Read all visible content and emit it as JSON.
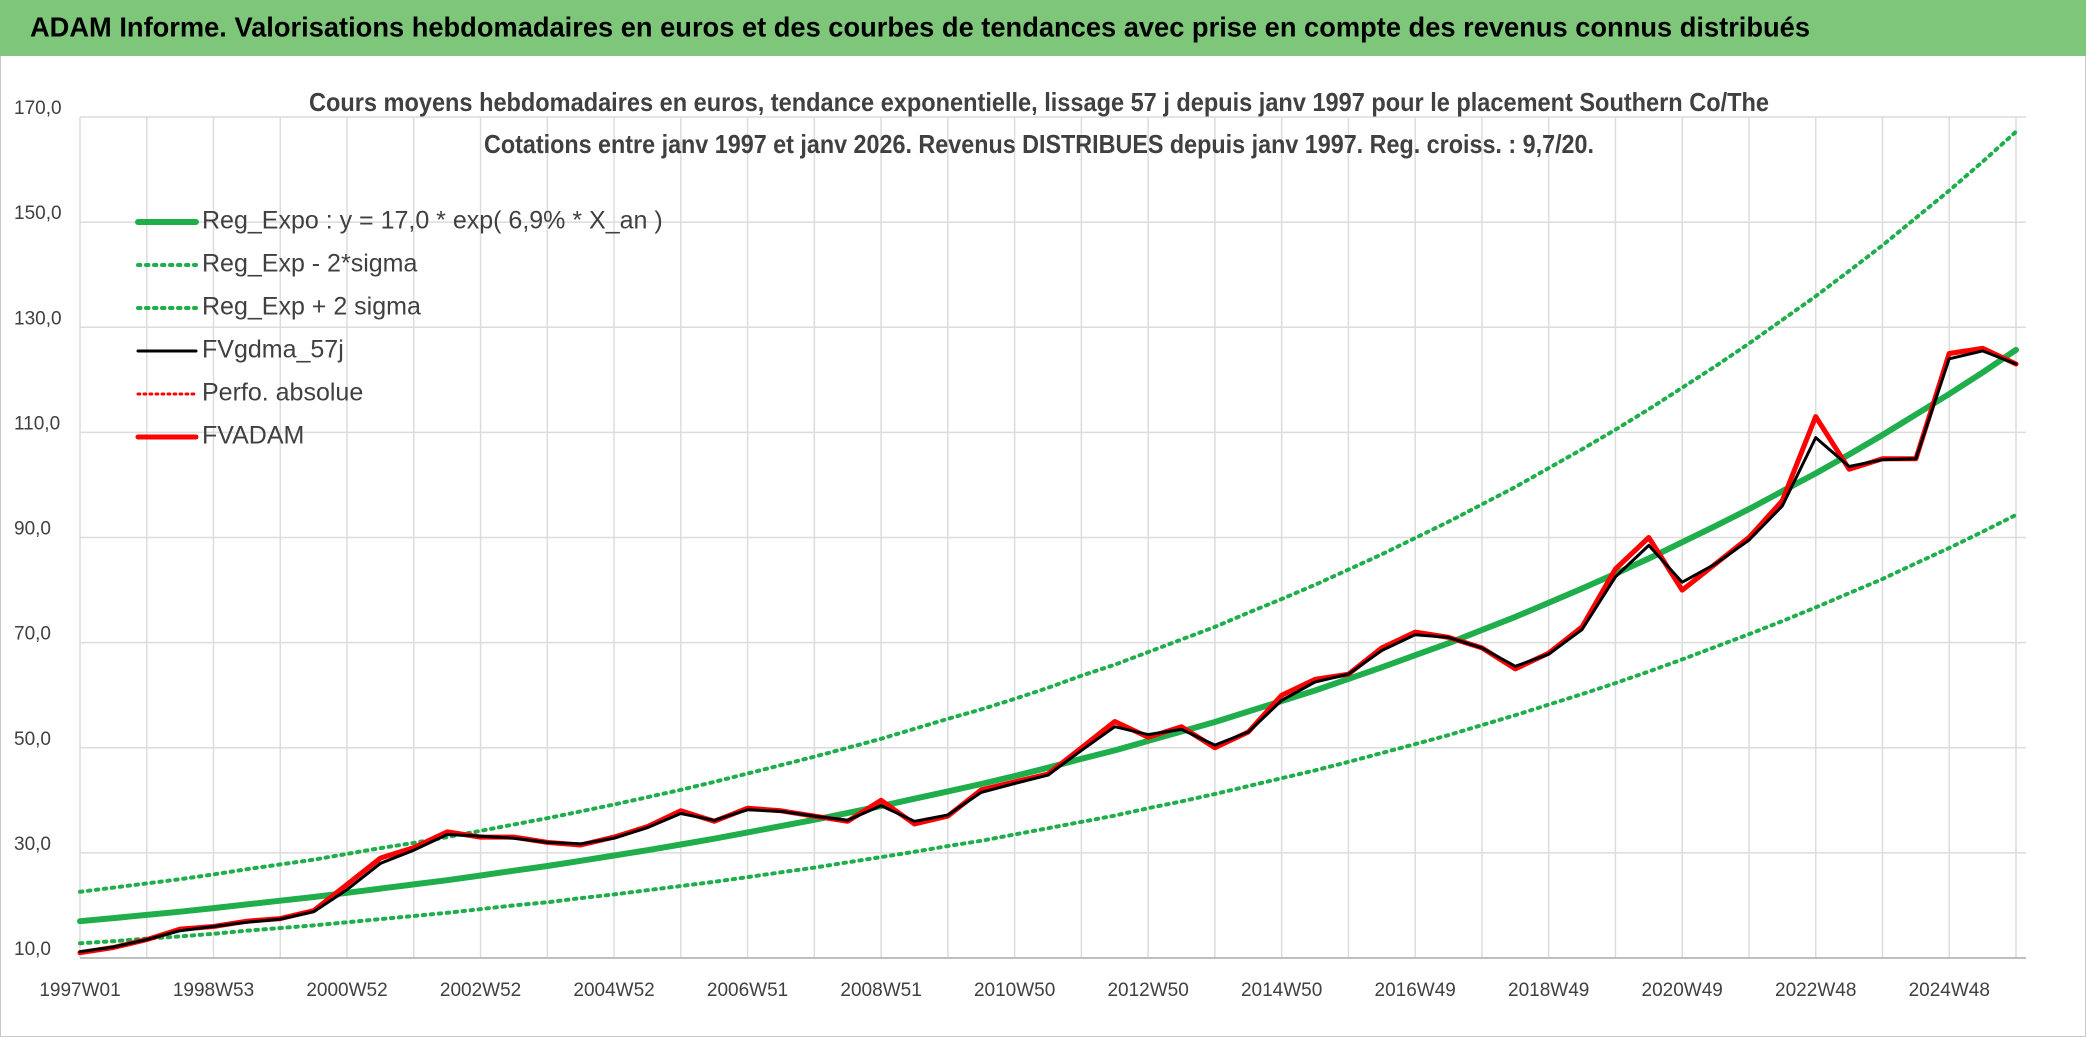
{
  "header": {
    "title": "ADAM Informe. Valorisations hebdomadaires en euros et des courbes de tendances avec prise en compte des revenus connus distribués"
  },
  "chart_data": {
    "type": "line",
    "title": "Cours moyens hebdomadaires en euros, tendance exponentielle, lissage 57 j depuis janv 1997 pour le placement Southern Co/The",
    "subtitle": "Cotations entre janv 1997 et janv 2026. Revenus DISTRIBUES depuis janv 1997. Reg. croiss. : 9,7/20.",
    "categories": [
      "1997W01",
      null,
      null,
      null,
      "1998W53",
      null,
      null,
      null,
      "2000W52",
      null,
      null,
      null,
      "2002W52",
      null,
      null,
      null,
      "2004W52",
      null,
      null,
      null,
      "2006W51",
      null,
      null,
      null,
      "2008W51",
      null,
      null,
      null,
      "2010W50",
      null,
      null,
      null,
      "2012W50",
      null,
      null,
      null,
      "2014W50",
      null,
      null,
      null,
      "2016W49",
      null,
      null,
      null,
      "2018W49",
      null,
      null,
      null,
      "2020W49",
      null,
      null,
      null,
      "2022W48",
      null,
      null,
      null,
      "2024W48",
      null,
      null
    ],
    "ylim": [
      10,
      170
    ],
    "yticks": [
      {
        "value": 10,
        "label": "10,0"
      },
      {
        "value": 30,
        "label": "30,0"
      },
      {
        "value": 50,
        "label": "50,0"
      },
      {
        "value": 70,
        "label": "70,0"
      },
      {
        "value": 90,
        "label": "90,0"
      },
      {
        "value": 110,
        "label": "110,0"
      },
      {
        "value": 130,
        "label": "130,0"
      },
      {
        "value": 150,
        "label": "150,0"
      },
      {
        "value": 170,
        "label": "170,0"
      }
    ],
    "grid": true,
    "legend": "top-left",
    "series": [
      {
        "name": "Reg_Expo : y = 17,0 * exp( 6,9% *  X_an )",
        "color": "#1fae4b",
        "dash": "solid",
        "width": 6,
        "values": [
          17.0,
          17.6,
          18.2,
          18.8,
          19.5,
          20.2,
          20.9,
          21.6,
          22.4,
          23.2,
          24.0,
          24.8,
          25.7,
          26.6,
          27.5,
          28.5,
          29.5,
          30.5,
          31.6,
          32.7,
          33.9,
          35.1,
          36.3,
          37.6,
          38.9,
          40.3,
          41.7,
          43.1,
          44.6,
          46.2,
          47.9,
          49.5,
          51.3,
          53.1,
          54.9,
          56.9,
          58.9,
          60.9,
          63.1,
          65.3,
          67.6,
          69.9,
          72.4,
          74.9,
          77.6,
          80.3,
          83.1,
          86.0,
          89.1,
          92.2,
          95.4,
          98.8,
          102.2,
          105.8,
          109.5,
          113.4,
          117.3,
          121.4,
          125.7
        ]
      },
      {
        "name": "Reg_Exp - 2*sigma",
        "color": "#1fae4b",
        "dash": "dotted",
        "width": 4,
        "values": [
          12.8,
          13.2,
          13.7,
          14.1,
          14.6,
          15.2,
          15.7,
          16.2,
          16.8,
          17.4,
          18.0,
          18.6,
          19.3,
          20.0,
          20.6,
          21.4,
          22.1,
          22.9,
          23.7,
          24.5,
          25.4,
          26.3,
          27.2,
          28.2,
          29.2,
          30.2,
          31.3,
          32.3,
          33.5,
          34.7,
          35.9,
          37.1,
          38.5,
          39.8,
          41.2,
          42.7,
          44.2,
          45.7,
          47.3,
          49.0,
          50.7,
          52.4,
          54.3,
          56.2,
          58.2,
          60.2,
          62.3,
          64.5,
          66.8,
          69.2,
          71.6,
          74.1,
          76.7,
          79.4,
          82.1,
          85.1,
          88.0,
          91.1,
          94.3
        ]
      },
      {
        "name": "Reg_Exp + 2 sigma",
        "color": "#1fae4b",
        "dash": "dotted",
        "width": 4,
        "values": [
          22.6,
          23.4,
          24.2,
          25.0,
          25.9,
          26.9,
          27.8,
          28.7,
          29.8,
          30.9,
          31.9,
          33.0,
          34.2,
          35.4,
          36.6,
          37.9,
          39.2,
          40.6,
          42.0,
          43.5,
          45.1,
          46.7,
          48.3,
          50.0,
          51.7,
          53.6,
          55.5,
          57.3,
          59.3,
          61.4,
          63.7,
          65.8,
          68.2,
          70.6,
          73.0,
          75.7,
          78.3,
          81.0,
          83.9,
          86.8,
          89.9,
          93.0,
          96.3,
          99.6,
          103.2,
          106.8,
          110.5,
          114.4,
          118.5,
          122.6,
          126.9,
          131.4,
          135.9,
          140.7,
          145.6,
          150.8,
          156.0,
          161.5,
          167.2
        ]
      },
      {
        "name": "FVgdma_57j",
        "color": "#000000",
        "dash": "solid",
        "width": 3,
        "values": [
          11.2,
          12.1,
          13.5,
          15.2,
          16.0,
          16.8,
          17.4,
          18.8,
          23.0,
          28.0,
          30.5,
          33.5,
          33.2,
          32.8,
          32.0,
          31.7,
          32.8,
          34.8,
          37.5,
          36.2,
          38.2,
          37.9,
          37.0,
          36.2,
          39.0,
          36.0,
          37.2,
          41.5,
          43.2,
          44.8,
          49.5,
          54.0,
          52.5,
          53.5,
          50.5,
          53.0,
          59.0,
          62.5,
          64.0,
          68.5,
          71.5,
          71.0,
          69.0,
          65.5,
          67.8,
          72.5,
          82.5,
          88.5,
          81.5,
          85.0,
          89.5,
          96.0,
          109.0,
          103.5,
          104.8,
          105.0,
          124.0,
          125.5,
          123.0
        ]
      },
      {
        "name": "Perfo. absolue",
        "color": "#ff0000",
        "dash": "dotted",
        "width": 3,
        "values": [
          11,
          12,
          13.5,
          15.5,
          16,
          17,
          17.5,
          19,
          24,
          29,
          31,
          34,
          33,
          33,
          32,
          31.5,
          33,
          35,
          38,
          36,
          38.5,
          38,
          37,
          36,
          40,
          35.5,
          37,
          42,
          43.5,
          45,
          50,
          55,
          52,
          54,
          50,
          53,
          60,
          63,
          64,
          69,
          72,
          71,
          69,
          65,
          68,
          73,
          84,
          90,
          80,
          85,
          90,
          97,
          113,
          103,
          105,
          105,
          125,
          126,
          123
        ]
      },
      {
        "name": "FVADAM",
        "color": "#ff0000",
        "dash": "solid",
        "width": 5,
        "values": [
          11,
          12,
          13.5,
          15.5,
          16,
          17,
          17.5,
          19,
          24,
          29,
          31,
          34,
          33,
          33,
          32,
          31.5,
          33,
          35,
          38,
          36,
          38.5,
          38,
          37,
          36,
          40,
          35.5,
          37,
          42,
          43.5,
          45,
          50,
          55,
          52,
          54,
          50,
          53,
          60,
          63,
          64,
          69,
          72,
          71,
          69,
          65,
          68,
          73,
          84,
          90,
          80,
          85,
          90,
          97,
          113,
          103,
          105,
          105,
          125,
          126,
          123
        ]
      }
    ]
  }
}
